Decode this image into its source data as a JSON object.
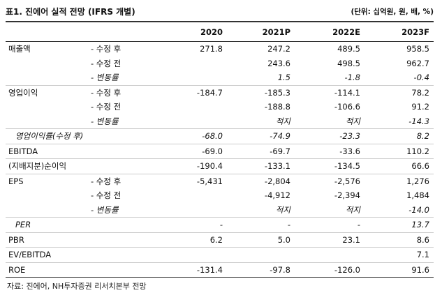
{
  "header": {
    "title": "표1. 진에어 실적 전망 (IFRS 개별)",
    "unit": "(단위: 십억원, 원, 배, %)"
  },
  "table": {
    "columns": [
      "2020",
      "2021P",
      "2022E",
      "2023F"
    ],
    "rows": [
      {
        "label": "매출액",
        "sub": "- 수정 후",
        "values": [
          "271.8",
          "247.2",
          "489.5",
          "958.5"
        ]
      },
      {
        "sub": "- 수정 전",
        "values": [
          null,
          "243.6",
          "498.5",
          "962.7"
        ]
      },
      {
        "sub": "- 변동률",
        "values": [
          null,
          "1.5",
          "-1.8",
          "-0.4"
        ]
      },
      {
        "label": "영업이익",
        "sub": "- 수정 후",
        "values": [
          "-184.7",
          "-185.3",
          "-114.1",
          "78.2"
        ]
      },
      {
        "sub": "- 수정 전",
        "values": [
          null,
          "-188.8",
          "-106.6",
          "91.2"
        ]
      },
      {
        "sub": "- 변동률",
        "values": [
          null,
          "적지",
          "적지",
          "-14.3"
        ]
      },
      {
        "label": "영업이익률(수정 후)",
        "values": [
          "-68.0",
          "-74.9",
          "-23.3",
          "8.2"
        ]
      },
      {
        "label": "EBITDA",
        "values": [
          "-69.0",
          "-69.7",
          "-33.6",
          "110.2"
        ]
      },
      {
        "label": "(지배지분)순이익",
        "values": [
          "-190.4",
          "-133.1",
          "-134.5",
          "66.6"
        ]
      },
      {
        "label": "EPS",
        "sub": "- 수정 후",
        "values": [
          "-5,431",
          "-2,804",
          "-2,576",
          "1,276"
        ]
      },
      {
        "sub": "- 수정 전",
        "values": [
          null,
          "-4,912",
          "-2,394",
          "1,484"
        ]
      },
      {
        "sub": "- 변동률",
        "values": [
          null,
          "적지",
          "적지",
          "-14.0"
        ]
      },
      {
        "label": "PER",
        "values": [
          "-",
          "-",
          "-",
          "13.7"
        ]
      },
      {
        "label": "PBR",
        "values": [
          "6.2",
          "5.0",
          "23.1",
          "8.6"
        ]
      },
      {
        "label": "EV/EBITDA",
        "values": [
          null,
          null,
          null,
          "7.1"
        ]
      },
      {
        "label": "ROE",
        "values": [
          "-131.4",
          "-97.8",
          "-126.0",
          "91.6"
        ]
      }
    ]
  },
  "footer": {
    "source": "자료: 진에어, NH투자증권 리서치본부 전망"
  }
}
